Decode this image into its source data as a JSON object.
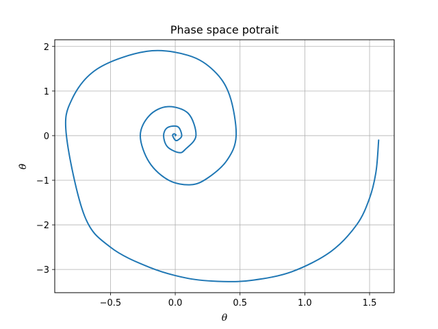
{
  "chart_data": {
    "type": "line",
    "title": "Phase space potrait",
    "xlabel": "θ",
    "ylabel": "θ̇",
    "xlim": [
      -0.93,
      1.69
    ],
    "ylim": [
      -3.52,
      2.15
    ],
    "xticks": [
      -0.5,
      0.0,
      0.5,
      1.0,
      1.5
    ],
    "yticks": [
      -3,
      -2,
      -1,
      0,
      1,
      2
    ],
    "xtick_labels": [
      "−0.5",
      "0.0",
      "0.5",
      "1.0",
      "1.5"
    ],
    "ytick_labels": [
      "−3",
      "−2",
      "−1",
      "0",
      "1",
      "2"
    ],
    "grid": true,
    "line_color": "#1f77b4",
    "series": [
      {
        "x": [
          1.57,
          1.55,
          1.5,
          1.4,
          1.2,
          0.9,
          0.6,
          0.37,
          0.1,
          -0.2,
          -0.5,
          -0.7,
          -0.84,
          -0.8,
          -0.6,
          -0.22,
          0.1,
          0.3,
          0.42,
          0.47,
          0.4,
          0.25,
          0.12,
          -0.05,
          -0.2,
          -0.27,
          -0.2,
          -0.06,
          0.1,
          0.16,
          0.08,
          0.03,
          -0.06,
          -0.09,
          -0.06,
          0.02,
          0.05,
          0.02,
          0.0,
          -0.02,
          -0.01,
          0.005,
          0.0
        ],
        "y": [
          -0.1,
          -0.8,
          -1.4,
          -2.0,
          -2.6,
          -3.05,
          -3.24,
          -3.27,
          -3.2,
          -2.95,
          -2.5,
          -1.8,
          0.0,
          0.8,
          1.5,
          1.89,
          1.8,
          1.45,
          0.9,
          0.0,
          -0.55,
          -0.95,
          -1.1,
          -1.0,
          -0.6,
          0.0,
          0.45,
          0.65,
          0.5,
          0.0,
          -0.3,
          -0.38,
          -0.25,
          0.0,
          0.18,
          0.2,
          0.0,
          -0.1,
          -0.1,
          0.0,
          0.04,
          0.02,
          0.0
        ]
      }
    ]
  }
}
